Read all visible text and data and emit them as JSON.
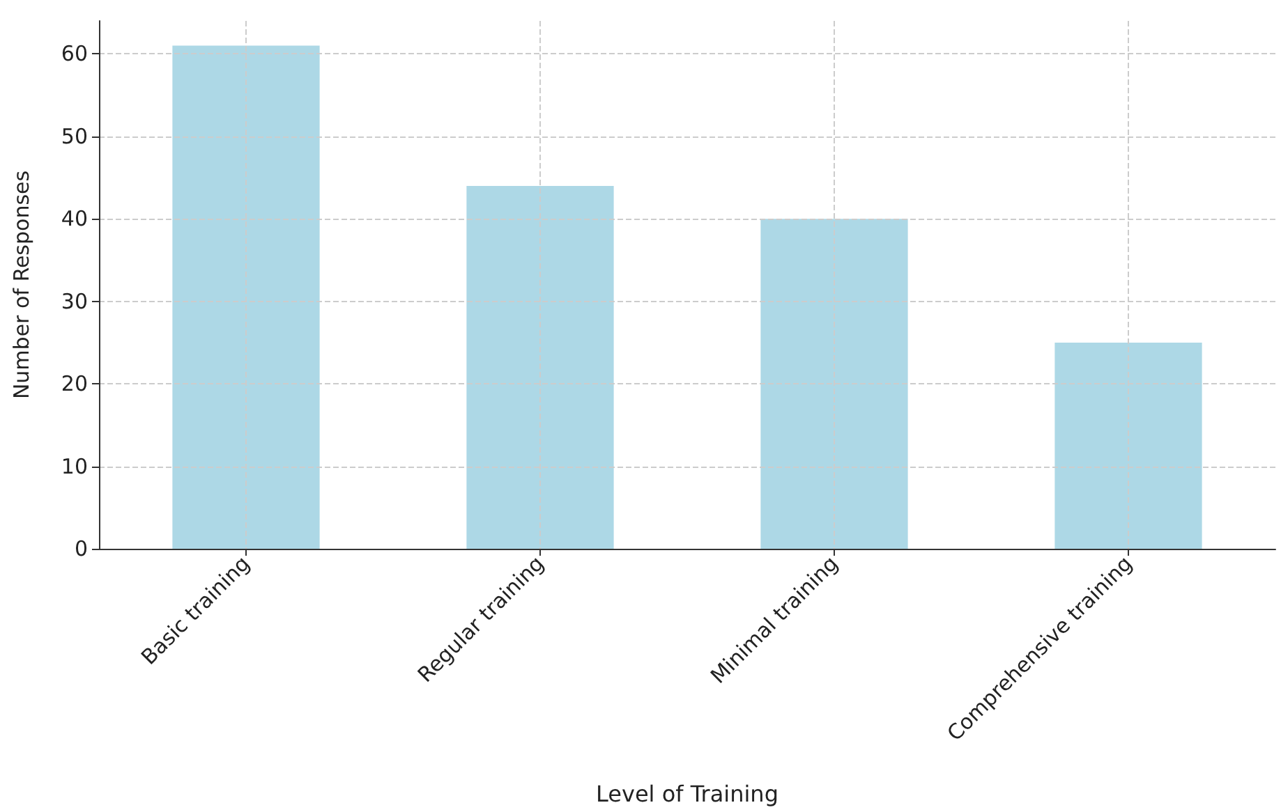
{
  "chart_data": {
    "type": "bar",
    "xlabel": "Level of Training",
    "ylabel": "Number of Responses",
    "categories": [
      "Basic training",
      "Regular training",
      "Minimal training",
      "Comprehensive training"
    ],
    "values": [
      61,
      44,
      40,
      25
    ],
    "color": "#add8e6",
    "ylim": [
      0,
      64
    ],
    "yticks": [
      0,
      10,
      20,
      30,
      40,
      50,
      60
    ],
    "grid": true
  }
}
